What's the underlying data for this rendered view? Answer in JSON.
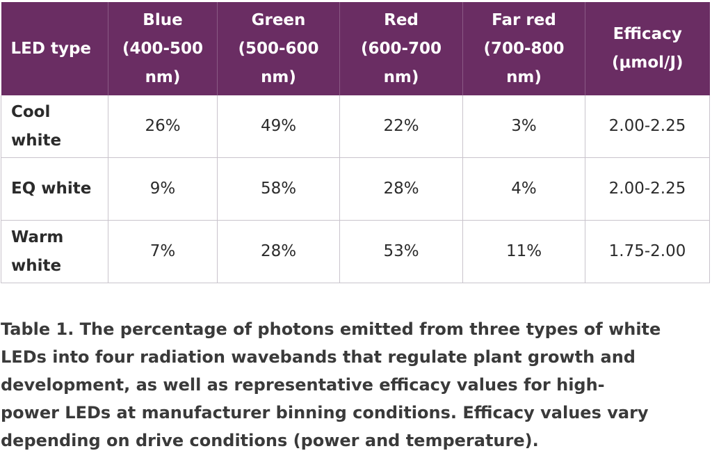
{
  "table": {
    "headers": [
      [
        "LED type"
      ],
      [
        "Blue",
        "(400-500",
        "nm)"
      ],
      [
        "Green",
        "(500-600",
        "nm)"
      ],
      [
        "Red",
        "(600-700",
        "nm)"
      ],
      [
        "Far red",
        "(700-800",
        "nm)"
      ],
      [
        "Efficacy",
        "(μmol/J)"
      ]
    ],
    "rows": [
      {
        "type_lines": [
          "Cool",
          "white"
        ],
        "blue": "26%",
        "green": "49%",
        "red": "22%",
        "far_red": "3%",
        "efficacy": "2.00-2.25"
      },
      {
        "type_lines": [
          "EQ white"
        ],
        "blue": "9%",
        "green": "58%",
        "red": "28%",
        "far_red": "4%",
        "efficacy": "2.00-2.25"
      },
      {
        "type_lines": [
          "Warm",
          "white"
        ],
        "blue": "7%",
        "green": "28%",
        "red": "53%",
        "far_red": "11%",
        "efficacy": "1.75-2.00"
      }
    ]
  },
  "caption": {
    "lines": [
      "Table 1. The percentage of photons emitted from three types of white",
      "LEDs into four radiation wavebands that regulate plant growth and",
      "development, as well as representative efficacy values for high-",
      "power LEDs at manufacturer binning conditions. Efficacy values vary",
      "depending on drive conditions (power and temperature)."
    ]
  },
  "colors": {
    "header_bg": "#6a2d63",
    "header_text": "#ffffff",
    "grid": "#c9c3cc",
    "body_text": "#2b2b2b"
  }
}
